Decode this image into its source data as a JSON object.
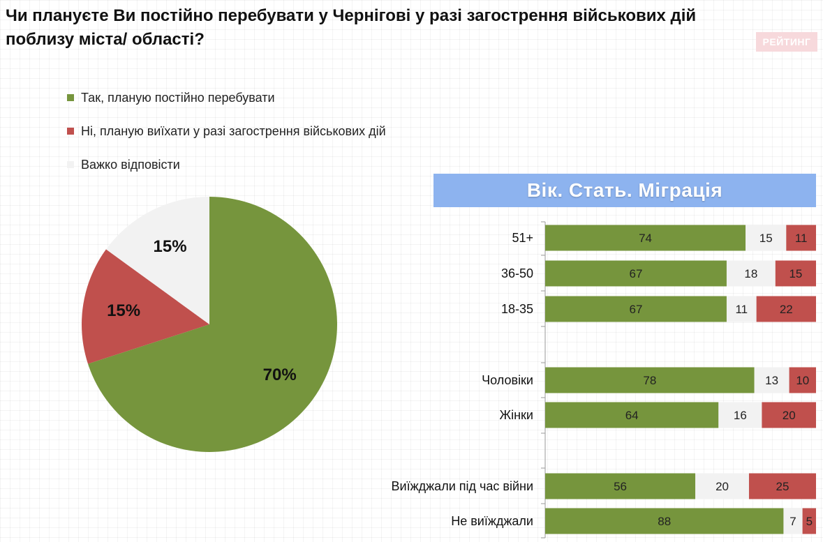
{
  "header": {
    "title": "Чи плануєте Ви постійно перебувати у Чернігові у разі загострення військових дій поблизу міста/ області?",
    "brand": "РЕЙТИНГ"
  },
  "colors": {
    "green": "#76953d",
    "red": "#c0504d",
    "gray": "#f2f2f2"
  },
  "legend": [
    {
      "label": "Так, планую постійно перебувати",
      "color": "#76953d"
    },
    {
      "label": "Ні, планую виїхати у разі загострення військових дій",
      "color": "#c0504d"
    },
    {
      "label": "Важко відповісти",
      "color": "#f2f2f2"
    }
  ],
  "panel": {
    "title": "Вік. Стать. Міграція"
  },
  "chart_data": [
    {
      "type": "pie",
      "slices": [
        {
          "label": "Так, планую постійно перебувати",
          "value": 70,
          "display": "70%"
        },
        {
          "label": "Ні, планую виїхати у разі загострення військових дій",
          "value": 15,
          "display": "15%"
        },
        {
          "label": "Важко відповісти",
          "value": 15,
          "display": "15%"
        }
      ]
    },
    {
      "type": "bar",
      "orientation": "horizontal",
      "stacked": true,
      "categories": [
        "51+",
        "36-50",
        "18-35",
        "Чоловіки",
        "Жінки",
        "Виїжджали під час війни",
        "Не виїжджали"
      ],
      "series": [
        {
          "name": "Так, планую постійно перебувати",
          "values": [
            74,
            67,
            67,
            78,
            64,
            56,
            88
          ]
        },
        {
          "name": "Важко відповісти",
          "values": [
            15,
            18,
            11,
            13,
            16,
            20,
            7
          ]
        },
        {
          "name": "Ні, планую виїхати у разі загострення військових дій",
          "values": [
            11,
            15,
            22,
            10,
            20,
            25,
            5
          ]
        }
      ]
    }
  ]
}
